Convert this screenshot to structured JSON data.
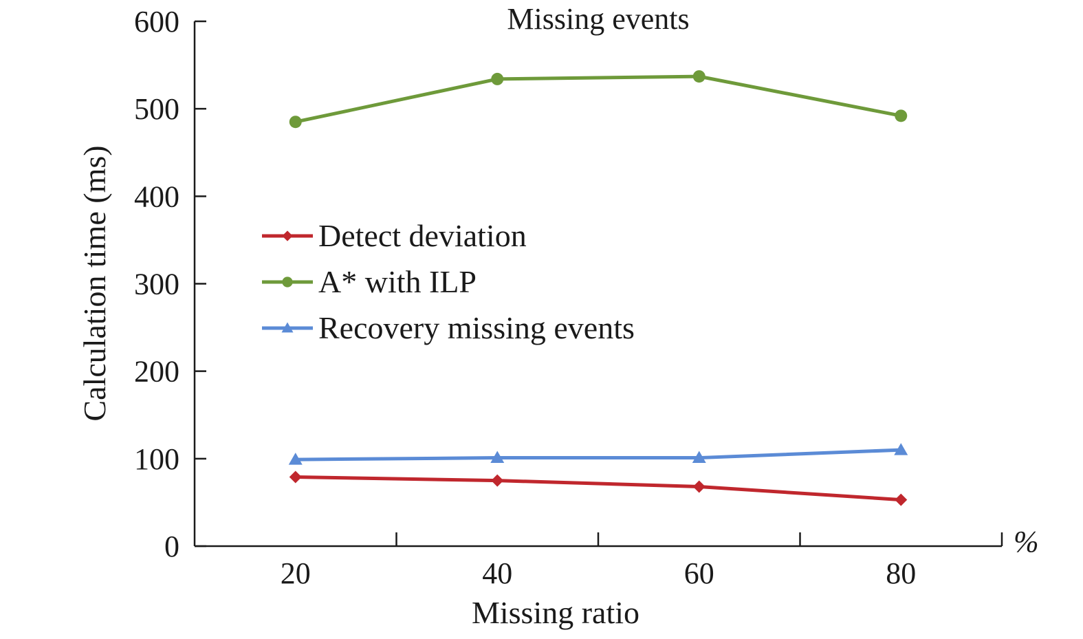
{
  "chart_data": {
    "type": "line",
    "title": "Missing events",
    "xlabel": "Missing ratio",
    "ylabel": "Calculation time (ms)",
    "x_unit": "%",
    "x": [
      20,
      40,
      60,
      80
    ],
    "x_tick_labels": [
      "20",
      "40",
      "60",
      "80"
    ],
    "xlim": [
      10,
      90
    ],
    "ylim": [
      0,
      600
    ],
    "y_ticks": [
      0,
      100,
      200,
      300,
      400,
      500,
      600
    ],
    "y_tick_labels": [
      "0",
      "100",
      "200",
      "300",
      "400",
      "500",
      "600"
    ],
    "grid": false,
    "legend_position": "center-left",
    "series": [
      {
        "name": "Detect deviation",
        "color": "#c0272d",
        "marker": "diamond",
        "values": [
          79,
          75,
          68,
          53
        ]
      },
      {
        "name": "A* with ILP",
        "color": "#6e9a3a",
        "marker": "circle",
        "values": [
          485,
          534,
          537,
          492
        ]
      },
      {
        "name": "Recovery missing events",
        "color": "#5b8bd6",
        "marker": "triangle",
        "values": [
          99,
          101,
          101,
          110
        ]
      }
    ]
  }
}
